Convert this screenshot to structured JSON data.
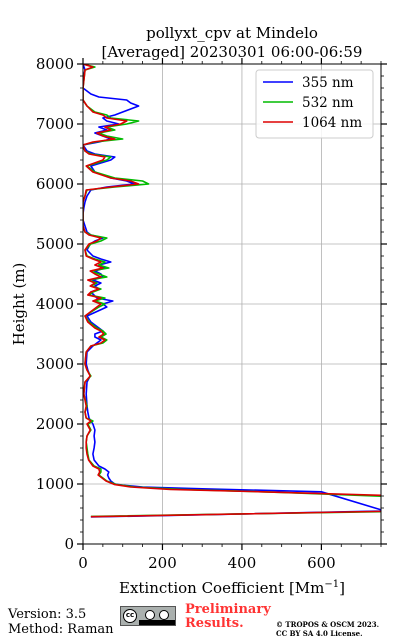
{
  "chart_data": {
    "type": "line",
    "title_line1": "pollyxt_cpv at Mindelo",
    "title_line2": "[Averaged] 20230301 06:00-06:59",
    "xlabel": "Extinction Coefficient [Mm",
    "xlabel_sup": "−1",
    "xlabel_suffix": "]",
    "ylabel": "Height (m)",
    "xlim": [
      0,
      750
    ],
    "ylim": [
      0,
      8000
    ],
    "xticks": [
      0,
      200,
      400,
      600
    ],
    "yticks": [
      0,
      1000,
      2000,
      3000,
      4000,
      5000,
      6000,
      7000,
      8000
    ],
    "xtick_labels": [
      "0",
      "200",
      "400",
      "600"
    ],
    "ytick_labels": [
      "0",
      "1000",
      "2000",
      "3000",
      "4000",
      "5000",
      "6000",
      "7000",
      "8000"
    ],
    "grid": true,
    "legend_position": "top-right",
    "series": [
      {
        "name": "355 nm",
        "color": "#0000ff",
        "points": [
          [
            20,
            450
          ],
          [
            760,
            550
          ],
          [
            600,
            870
          ],
          [
            300,
            920
          ],
          [
            150,
            950
          ],
          [
            100,
            980
          ],
          [
            80,
            1000
          ],
          [
            70,
            1050
          ],
          [
            65,
            1100
          ],
          [
            62,
            1150
          ],
          [
            65,
            1200
          ],
          [
            55,
            1250
          ],
          [
            40,
            1300
          ],
          [
            28,
            1400
          ],
          [
            25,
            1500
          ],
          [
            28,
            1600
          ],
          [
            30,
            1700
          ],
          [
            28,
            1800
          ],
          [
            30,
            1900
          ],
          [
            25,
            2000
          ],
          [
            15,
            2100
          ],
          [
            12,
            2200
          ],
          [
            10,
            2300
          ],
          [
            8,
            2500
          ],
          [
            10,
            2700
          ],
          [
            18,
            2800
          ],
          [
            12,
            2900
          ],
          [
            8,
            3000
          ],
          [
            10,
            3200
          ],
          [
            25,
            3300
          ],
          [
            45,
            3400
          ],
          [
            30,
            3450
          ],
          [
            30,
            3500
          ],
          [
            50,
            3550
          ],
          [
            40,
            3600
          ],
          [
            20,
            3700
          ],
          [
            10,
            3800
          ],
          [
            60,
            3950
          ],
          [
            50,
            4000
          ],
          [
            75,
            4050
          ],
          [
            35,
            4100
          ],
          [
            20,
            4200
          ],
          [
            40,
            4250
          ],
          [
            30,
            4300
          ],
          [
            45,
            4350
          ],
          [
            25,
            4400
          ],
          [
            50,
            4450
          ],
          [
            45,
            4500
          ],
          [
            30,
            4550
          ],
          [
            55,
            4600
          ],
          [
            40,
            4650
          ],
          [
            70,
            4700
          ],
          [
            45,
            4750
          ],
          [
            25,
            4800
          ],
          [
            10,
            4900
          ],
          [
            18,
            5000
          ],
          [
            30,
            5050
          ],
          [
            50,
            5100
          ],
          [
            20,
            5150
          ],
          [
            10,
            5200
          ],
          [
            5,
            5300
          ],
          [
            0,
            5400
          ],
          [
            0,
            5500
          ],
          [
            2,
            5600
          ],
          [
            5,
            5700
          ],
          [
            10,
            5800
          ],
          [
            20,
            5900
          ],
          [
            60,
            5950
          ],
          [
            130,
            6000
          ],
          [
            110,
            6050
          ],
          [
            70,
            6100
          ],
          [
            30,
            6200
          ],
          [
            20,
            6300
          ],
          [
            70,
            6400
          ],
          [
            80,
            6450
          ],
          [
            30,
            6500
          ],
          [
            10,
            6550
          ],
          [
            0,
            6650
          ],
          [
            40,
            6700
          ],
          [
            70,
            6750
          ],
          [
            50,
            6800
          ],
          [
            30,
            6850
          ],
          [
            60,
            6900
          ],
          [
            40,
            6950
          ],
          [
            90,
            7000
          ],
          [
            60,
            7050
          ],
          [
            50,
            7100
          ],
          [
            80,
            7150
          ],
          [
            100,
            7200
          ],
          [
            140,
            7300
          ],
          [
            120,
            7350
          ],
          [
            110,
            7400
          ],
          [
            40,
            7450
          ],
          [
            20,
            7500
          ],
          [
            0,
            7600
          ],
          [
            0,
            7750
          ],
          [
            5,
            7900
          ],
          [
            0,
            8000
          ]
        ]
      },
      {
        "name": "532 nm",
        "color": "#00bb00",
        "points": [
          [
            20,
            460
          ],
          [
            760,
            540
          ],
          [
            780,
            790
          ],
          [
            500,
            860
          ],
          [
            250,
            910
          ],
          [
            130,
            950
          ],
          [
            85,
            990
          ],
          [
            60,
            1050
          ],
          [
            50,
            1100
          ],
          [
            40,
            1150
          ],
          [
            45,
            1200
          ],
          [
            45,
            1250
          ],
          [
            28,
            1300
          ],
          [
            15,
            1400
          ],
          [
            12,
            1500
          ],
          [
            10,
            1600
          ],
          [
            8,
            1700
          ],
          [
            10,
            1800
          ],
          [
            20,
            1900
          ],
          [
            12,
            2000
          ],
          [
            25,
            2050
          ],
          [
            8,
            2100
          ],
          [
            5,
            2200
          ],
          [
            10,
            2300
          ],
          [
            2,
            2500
          ],
          [
            5,
            2700
          ],
          [
            20,
            2800
          ],
          [
            10,
            2900
          ],
          [
            5,
            3000
          ],
          [
            8,
            3200
          ],
          [
            20,
            3300
          ],
          [
            50,
            3350
          ],
          [
            60,
            3400
          ],
          [
            45,
            3450
          ],
          [
            58,
            3500
          ],
          [
            50,
            3550
          ],
          [
            35,
            3600
          ],
          [
            15,
            3700
          ],
          [
            5,
            3800
          ],
          [
            40,
            3950
          ],
          [
            55,
            4000
          ],
          [
            30,
            4050
          ],
          [
            55,
            4100
          ],
          [
            15,
            4150
          ],
          [
            25,
            4200
          ],
          [
            45,
            4250
          ],
          [
            20,
            4300
          ],
          [
            35,
            4350
          ],
          [
            15,
            4400
          ],
          [
            60,
            4450
          ],
          [
            40,
            4500
          ],
          [
            20,
            4550
          ],
          [
            65,
            4600
          ],
          [
            40,
            4650
          ],
          [
            55,
            4700
          ],
          [
            30,
            4750
          ],
          [
            10,
            4800
          ],
          [
            5,
            4900
          ],
          [
            20,
            5000
          ],
          [
            45,
            5050
          ],
          [
            60,
            5100
          ],
          [
            20,
            5150
          ],
          [
            5,
            5200
          ],
          [
            0,
            5300
          ],
          [
            0,
            5500
          ],
          [
            0,
            5700
          ],
          [
            5,
            5800
          ],
          [
            10,
            5900
          ],
          [
            80,
            5950
          ],
          [
            165,
            6000
          ],
          [
            150,
            6050
          ],
          [
            80,
            6100
          ],
          [
            30,
            6200
          ],
          [
            10,
            6300
          ],
          [
            60,
            6400
          ],
          [
            70,
            6450
          ],
          [
            20,
            6500
          ],
          [
            5,
            6550
          ],
          [
            0,
            6650
          ],
          [
            30,
            6700
          ],
          [
            100,
            6750
          ],
          [
            60,
            6800
          ],
          [
            40,
            6850
          ],
          [
            80,
            6900
          ],
          [
            60,
            6950
          ],
          [
            110,
            7000
          ],
          [
            140,
            7050
          ],
          [
            70,
            7100
          ],
          [
            60,
            7150
          ],
          [
            30,
            7200
          ],
          [
            10,
            7300
          ],
          [
            0,
            7400
          ],
          [
            0,
            7600
          ],
          [
            5,
            7900
          ],
          [
            30,
            7950
          ],
          [
            0,
            8000
          ]
        ]
      },
      {
        "name": "1064 nm",
        "color": "#dd0000",
        "points": [
          [
            20,
            455
          ],
          [
            760,
            545
          ],
          [
            760,
            810
          ],
          [
            450,
            870
          ],
          [
            220,
            910
          ],
          [
            120,
            950
          ],
          [
            80,
            990
          ],
          [
            58,
            1050
          ],
          [
            48,
            1100
          ],
          [
            38,
            1150
          ],
          [
            42,
            1200
          ],
          [
            40,
            1250
          ],
          [
            25,
            1300
          ],
          [
            14,
            1400
          ],
          [
            10,
            1500
          ],
          [
            8,
            1600
          ],
          [
            8,
            1700
          ],
          [
            10,
            1800
          ],
          [
            18,
            1900
          ],
          [
            10,
            2000
          ],
          [
            20,
            2050
          ],
          [
            8,
            2100
          ],
          [
            5,
            2200
          ],
          [
            8,
            2300
          ],
          [
            2,
            2500
          ],
          [
            5,
            2700
          ],
          [
            18,
            2800
          ],
          [
            10,
            2900
          ],
          [
            5,
            3000
          ],
          [
            8,
            3200
          ],
          [
            20,
            3300
          ],
          [
            45,
            3350
          ],
          [
            55,
            3400
          ],
          [
            40,
            3450
          ],
          [
            52,
            3500
          ],
          [
            45,
            3550
          ],
          [
            30,
            3600
          ],
          [
            12,
            3700
          ],
          [
            5,
            3800
          ],
          [
            35,
            3950
          ],
          [
            45,
            4000
          ],
          [
            25,
            4050
          ],
          [
            45,
            4100
          ],
          [
            12,
            4150
          ],
          [
            20,
            4200
          ],
          [
            40,
            4250
          ],
          [
            18,
            4300
          ],
          [
            30,
            4350
          ],
          [
            12,
            4400
          ],
          [
            45,
            4450
          ],
          [
            30,
            4500
          ],
          [
            18,
            4550
          ],
          [
            50,
            4600
          ],
          [
            30,
            4650
          ],
          [
            45,
            4700
          ],
          [
            25,
            4750
          ],
          [
            8,
            4800
          ],
          [
            5,
            4900
          ],
          [
            15,
            5000
          ],
          [
            35,
            5050
          ],
          [
            45,
            5100
          ],
          [
            15,
            5150
          ],
          [
            5,
            5200
          ],
          [
            0,
            5300
          ],
          [
            0,
            5500
          ],
          [
            0,
            5700
          ],
          [
            5,
            5800
          ],
          [
            8,
            5900
          ],
          [
            70,
            5950
          ],
          [
            140,
            6000
          ],
          [
            120,
            6050
          ],
          [
            70,
            6100
          ],
          [
            25,
            6200
          ],
          [
            8,
            6300
          ],
          [
            50,
            6400
          ],
          [
            55,
            6450
          ],
          [
            15,
            6500
          ],
          [
            5,
            6550
          ],
          [
            0,
            6650
          ],
          [
            25,
            6700
          ],
          [
            80,
            6750
          ],
          [
            50,
            6800
          ],
          [
            35,
            6850
          ],
          [
            70,
            6900
          ],
          [
            55,
            6950
          ],
          [
            95,
            7000
          ],
          [
            110,
            7050
          ],
          [
            60,
            7100
          ],
          [
            50,
            7150
          ],
          [
            25,
            7200
          ],
          [
            10,
            7300
          ],
          [
            0,
            7400
          ],
          [
            0,
            7600
          ],
          [
            5,
            7900
          ],
          [
            25,
            7950
          ],
          [
            0,
            8000
          ]
        ]
      }
    ]
  },
  "footer": {
    "version": "Version: 3.5",
    "method": "Method: Raman",
    "cc_symbol": "cc",
    "preliminary_line1": "Preliminary",
    "preliminary_line2": "Results.",
    "copyright_line1": "© TROPOS & OSCM 2023.",
    "copyright_line2": "CC BY SA 4.0 License."
  }
}
